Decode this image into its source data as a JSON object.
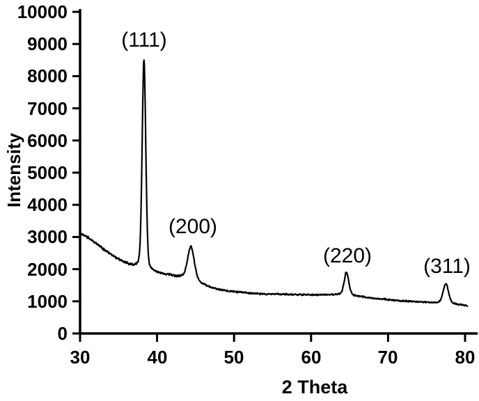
{
  "figure": {
    "background": "#ffffff",
    "ink_color": "#000000"
  },
  "chart_data": {
    "type": "line",
    "title": "",
    "xlabel": "2 Theta",
    "ylabel": "Intensity",
    "xlim": [
      30,
      80.3
    ],
    "ylim": [
      0,
      10000
    ],
    "x_ticks": [
      30,
      40,
      50,
      60,
      70,
      80
    ],
    "y_ticks": [
      0,
      1000,
      2000,
      3000,
      4000,
      5000,
      6000,
      7000,
      8000,
      9000,
      10000
    ],
    "grid": false,
    "legend": false,
    "line_color": "#000000",
    "noise_amplitude": 40,
    "peaks": [
      {
        "label": "(111)",
        "two_theta": 38.3,
        "peak_intensity": 8500,
        "fwhm_deg": 0.55
      },
      {
        "label": "(200)",
        "two_theta": 44.4,
        "peak_intensity": 2700,
        "fwhm_deg": 1.0
      },
      {
        "label": "(220)",
        "two_theta": 64.6,
        "peak_intensity": 1900,
        "fwhm_deg": 0.7
      },
      {
        "label": "(311)",
        "two_theta": 77.5,
        "peak_intensity": 1550,
        "fwhm_deg": 0.8
      }
    ],
    "background_curve": [
      [
        30,
        3120
      ],
      [
        31,
        2980
      ],
      [
        32,
        2820
      ],
      [
        33,
        2630
      ],
      [
        34,
        2460
      ],
      [
        35,
        2300
      ],
      [
        35.7,
        2210
      ],
      [
        36.5,
        2130
      ],
      [
        37.5,
        2060
      ],
      [
        38.3,
        2000
      ],
      [
        39,
        1950
      ],
      [
        40,
        1890
      ],
      [
        41,
        1840
      ],
      [
        42,
        1795
      ],
      [
        43,
        1765
      ],
      [
        44,
        1720
      ],
      [
        44.4,
        1700
      ],
      [
        45.2,
        1620
      ],
      [
        46,
        1520
      ],
      [
        47,
        1430
      ],
      [
        48,
        1365
      ],
      [
        49,
        1325
      ],
      [
        50,
        1300
      ],
      [
        52,
        1258
      ],
      [
        54,
        1230
      ],
      [
        56,
        1215
      ],
      [
        58,
        1208
      ],
      [
        60,
        1202
      ],
      [
        62,
        1205
      ],
      [
        63.5,
        1210
      ],
      [
        64.6,
        1200
      ],
      [
        65.5,
        1180
      ],
      [
        66,
        1160
      ],
      [
        67,
        1128
      ],
      [
        68,
        1100
      ],
      [
        69,
        1075
      ],
      [
        70,
        1052
      ],
      [
        71,
        1030
      ],
      [
        72,
        1012
      ],
      [
        73,
        996
      ],
      [
        74,
        984
      ],
      [
        75,
        968
      ],
      [
        76,
        955
      ],
      [
        77,
        945
      ],
      [
        78,
        928
      ],
      [
        79,
        900
      ],
      [
        80,
        876
      ],
      [
        80.3,
        866
      ]
    ]
  }
}
